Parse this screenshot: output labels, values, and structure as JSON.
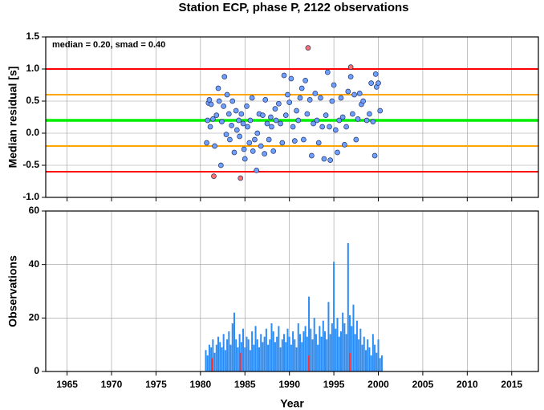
{
  "chart_data": [
    {
      "type": "scatter",
      "title": "Station ECP, phase P, 2122 observations",
      "ylabel": "Median residual [s]",
      "annotation": "median = 0.20, smad = 0.40",
      "xlim": [
        1962.6,
        2018
      ],
      "xticks": [
        1965,
        1970,
        1975,
        1980,
        1985,
        1990,
        1995,
        2000,
        2005,
        2010,
        2015
      ],
      "ylim": [
        -1.0,
        1.5
      ],
      "yticks": [
        {
          "value": -1.0,
          "label": "-1.0"
        },
        -0.5,
        {
          "value": 0.0,
          "label": "0.0"
        },
        0.5,
        {
          "value": 1.0,
          "label": "1.0"
        },
        1.5
      ],
      "grid": true,
      "hlines": [
        {
          "value": 1.0,
          "color": "#ff0000"
        },
        {
          "value": 0.6,
          "color": "#ffa500"
        },
        {
          "value": 0.2,
          "color": "#00ee00"
        },
        {
          "value": -0.2,
          "color": "#ffa500"
        },
        {
          "value": -0.6,
          "color": "#ff0000"
        }
      ],
      "series": [
        {
          "color": "#6fa0ff",
          "x": [
            1980.7,
            1980.8,
            1980.9,
            1981.0,
            1981.1,
            1981.2,
            1981.4,
            1981.6,
            1981.8,
            1982.0,
            1982.1,
            1982.3,
            1982.4,
            1982.6,
            1982.7,
            1982.9,
            1983.0,
            1983.2,
            1983.3,
            1983.5,
            1983.6,
            1983.8,
            1984.0,
            1984.1,
            1984.3,
            1984.4,
            1984.6,
            1984.8,
            1984.9,
            1985.0,
            1985.2,
            1985.3,
            1985.5,
            1985.6,
            1985.8,
            1985.9,
            1986.1,
            1986.3,
            1986.4,
            1986.6,
            1986.8,
            1987.0,
            1987.2,
            1987.3,
            1987.5,
            1987.7,
            1987.9,
            1988.0,
            1988.2,
            1988.4,
            1988.5,
            1988.8,
            1989.0,
            1989.2,
            1989.4,
            1989.6,
            1989.8,
            1990.0,
            1990.2,
            1990.4,
            1990.6,
            1990.8,
            1991.0,
            1991.2,
            1991.4,
            1991.6,
            1991.8,
            1992.0,
            1992.3,
            1992.5,
            1992.7,
            1992.9,
            1993.1,
            1993.3,
            1993.5,
            1993.7,
            1993.9,
            1994.1,
            1994.3,
            1994.5,
            1994.6,
            1994.8,
            1995.0,
            1995.2,
            1995.4,
            1995.6,
            1995.8,
            1996.0,
            1996.2,
            1996.4,
            1996.6,
            1996.9,
            1997.1,
            1997.3,
            1997.5,
            1997.7,
            1997.9,
            1998.1,
            1998.3,
            1998.7,
            1999.0,
            1999.2,
            1999.4,
            1999.6,
            1999.7,
            1999.8,
            2000.0,
            2000.2
          ],
          "values": [
            -0.15,
            0.2,
            0.47,
            0.52,
            0.1,
            0.45,
            0.22,
            -0.2,
            0.28,
            0.7,
            0.5,
            -0.5,
            0.18,
            0.42,
            0.88,
            -0.02,
            0.6,
            0.3,
            -0.1,
            0.12,
            0.5,
            -0.3,
            0.35,
            0.05,
            0.2,
            -0.05,
            0.3,
            0.15,
            -0.25,
            -0.4,
            0.42,
            0.1,
            -0.15,
            0.2,
            0.55,
            -0.28,
            -0.1,
            -0.58,
            0.0,
            0.3,
            -0.2,
            0.28,
            -0.32,
            0.52,
            0.15,
            -0.1,
            0.25,
            0.1,
            -0.28,
            0.38,
            0.2,
            0.46,
            0.15,
            -0.15,
            0.9,
            0.28,
            0.6,
            0.48,
            0.85,
            0.1,
            -0.12,
            0.35,
            0.2,
            0.55,
            0.7,
            -0.1,
            0.82,
            0.3,
            0.52,
            -0.35,
            0.15,
            0.62,
            0.2,
            -0.15,
            0.55,
            0.1,
            -0.4,
            0.28,
            0.95,
            0.1,
            -0.42,
            0.5,
            0.75,
            0.05,
            -0.3,
            0.2,
            0.55,
            0.25,
            -0.18,
            0.1,
            0.65,
            0.88,
            0.3,
            0.6,
            -0.1,
            0.22,
            0.62,
            0.45,
            0.5,
            0.2,
            0.3,
            0.78,
            0.18,
            -0.35,
            0.92,
            0.72,
            0.78,
            0.35
          ]
        },
        {
          "color": "#ff6f6f",
          "x": [
            1981.5,
            1984.5,
            1992.1,
            1996.9
          ],
          "values": [
            -0.67,
            -0.7,
            1.33,
            1.03
          ]
        }
      ]
    },
    {
      "type": "bar",
      "ylabel": "Observations",
      "xlabel": "Year",
      "xlim": [
        1962.6,
        2018
      ],
      "xticks": [
        1965,
        1970,
        1975,
        1980,
        1985,
        1990,
        1995,
        2000,
        2005,
        2010,
        2015
      ],
      "ylim": [
        0,
        60
      ],
      "yticks": [
        0,
        20,
        40,
        60
      ],
      "grid": true,
      "series": [
        {
          "color": "#2b8cf5",
          "x": [
            1980.6,
            1980.8,
            1981.0,
            1981.2,
            1981.4,
            1981.6,
            1981.8,
            1982.0,
            1982.2,
            1982.4,
            1982.6,
            1982.8,
            1983.0,
            1983.2,
            1983.4,
            1983.6,
            1983.8,
            1984.0,
            1984.2,
            1984.4,
            1984.6,
            1984.8,
            1985.0,
            1985.2,
            1985.4,
            1985.6,
            1985.8,
            1986.0,
            1986.2,
            1986.4,
            1986.6,
            1986.8,
            1987.0,
            1987.2,
            1987.4,
            1987.6,
            1987.8,
            1988.0,
            1988.2,
            1988.4,
            1988.6,
            1988.8,
            1989.0,
            1989.2,
            1989.4,
            1989.6,
            1989.8,
            1990.0,
            1990.2,
            1990.4,
            1990.6,
            1990.8,
            1991.0,
            1991.2,
            1991.4,
            1991.6,
            1991.8,
            1992.0,
            1992.2,
            1992.4,
            1992.6,
            1992.8,
            1993.0,
            1993.2,
            1993.4,
            1993.6,
            1993.8,
            1994.0,
            1994.2,
            1994.4,
            1994.6,
            1994.8,
            1995.0,
            1995.2,
            1995.4,
            1995.6,
            1995.8,
            1996.0,
            1996.2,
            1996.4,
            1996.6,
            1996.8,
            1997.0,
            1997.2,
            1997.4,
            1997.6,
            1997.8,
            1998.0,
            1998.2,
            1998.4,
            1998.6,
            1998.8,
            1999.0,
            1999.2,
            1999.4,
            1999.6,
            1999.8,
            2000.0,
            2000.2,
            2000.4
          ],
          "values": [
            8,
            6,
            10,
            9,
            12,
            7,
            10,
            13,
            11,
            9,
            14,
            8,
            12,
            15,
            10,
            18,
            22,
            12,
            9,
            14,
            11,
            16,
            9,
            13,
            12,
            8,
            15,
            10,
            17,
            12,
            9,
            14,
            11,
            13,
            16,
            10,
            12,
            18,
            15,
            11,
            13,
            17,
            9,
            12,
            14,
            11,
            16,
            13,
            10,
            15,
            12,
            9,
            18,
            14,
            11,
            15,
            17,
            13,
            28,
            16,
            12,
            20,
            14,
            10,
            17,
            13,
            19,
            15,
            12,
            26,
            14,
            18,
            41,
            16,
            20,
            13,
            15,
            22,
            18,
            14,
            48,
            21,
            17,
            25,
            14,
            19,
            12,
            16,
            10,
            13,
            8,
            12,
            9,
            6,
            14,
            10,
            7,
            12,
            5,
            6
          ]
        },
        {
          "color": "#ff3030",
          "x": [
            1981.3,
            1984.5,
            1992.2,
            1996.8
          ],
          "values": [
            5,
            7,
            6,
            7
          ]
        }
      ]
    }
  ]
}
